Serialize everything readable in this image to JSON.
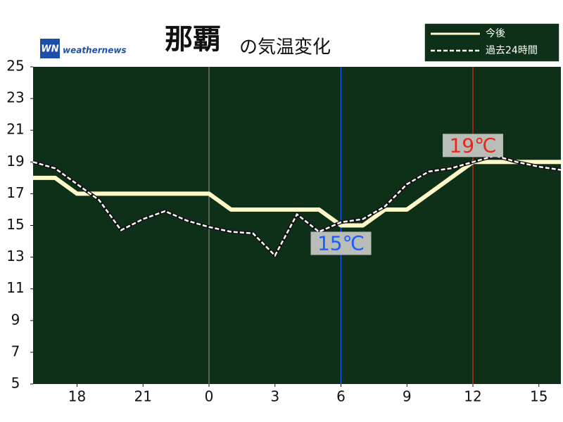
{
  "chart_data": {
    "type": "line",
    "title": {
      "place": "那覇",
      "text": "の気温変化"
    },
    "logo": {
      "mark": "WN",
      "text": "weathernews"
    },
    "xlim": [
      16,
      40
    ],
    "xticks": [
      18,
      21,
      {
        "value": 24,
        "label": "0"
      },
      {
        "value": 27,
        "label": "3"
      },
      {
        "value": 30,
        "label": "6"
      },
      {
        "value": 33,
        "label": "9"
      },
      {
        "value": 36,
        "label": "12"
      },
      {
        "value": 39,
        "label": "15"
      }
    ],
    "ylim": [
      5,
      25
    ],
    "yticks": [
      5,
      7,
      9,
      11,
      13,
      15,
      17,
      19,
      21,
      23,
      25
    ],
    "day_boundary": 24,
    "legend": "top-right",
    "x": [
      16,
      17,
      18,
      19,
      20,
      21,
      22,
      23,
      24,
      25,
      26,
      27,
      28,
      29,
      30,
      31,
      32,
      33,
      34,
      35,
      36,
      37,
      38,
      39,
      40
    ],
    "series": [
      {
        "name": "今後",
        "color": "#fff8c8",
        "dashed": false,
        "values": [
          18,
          18,
          17,
          17,
          17,
          17,
          17,
          17,
          17,
          16,
          16,
          16,
          16,
          16,
          15,
          15,
          16,
          16,
          17,
          18,
          19,
          19,
          19,
          19,
          19
        ]
      },
      {
        "name": "過去24時間",
        "color": "#ffffff",
        "dashed": true,
        "values": [
          19.0,
          18.6,
          17.6,
          16.6,
          14.7,
          15.4,
          15.9,
          15.3,
          14.9,
          14.6,
          14.5,
          13.1,
          15.7,
          14.6,
          15.2,
          15.4,
          16.2,
          17.6,
          18.4,
          18.6,
          19.0,
          19.4,
          19.0,
          18.7,
          18.5
        ]
      }
    ],
    "annotations": [
      {
        "x": 30,
        "value": 15,
        "label": "15℃",
        "color": "#1a5cff",
        "position": "below"
      },
      {
        "x": 36,
        "value": 19,
        "label": "19℃",
        "color": "#e8261a",
        "position": "above"
      }
    ]
  }
}
